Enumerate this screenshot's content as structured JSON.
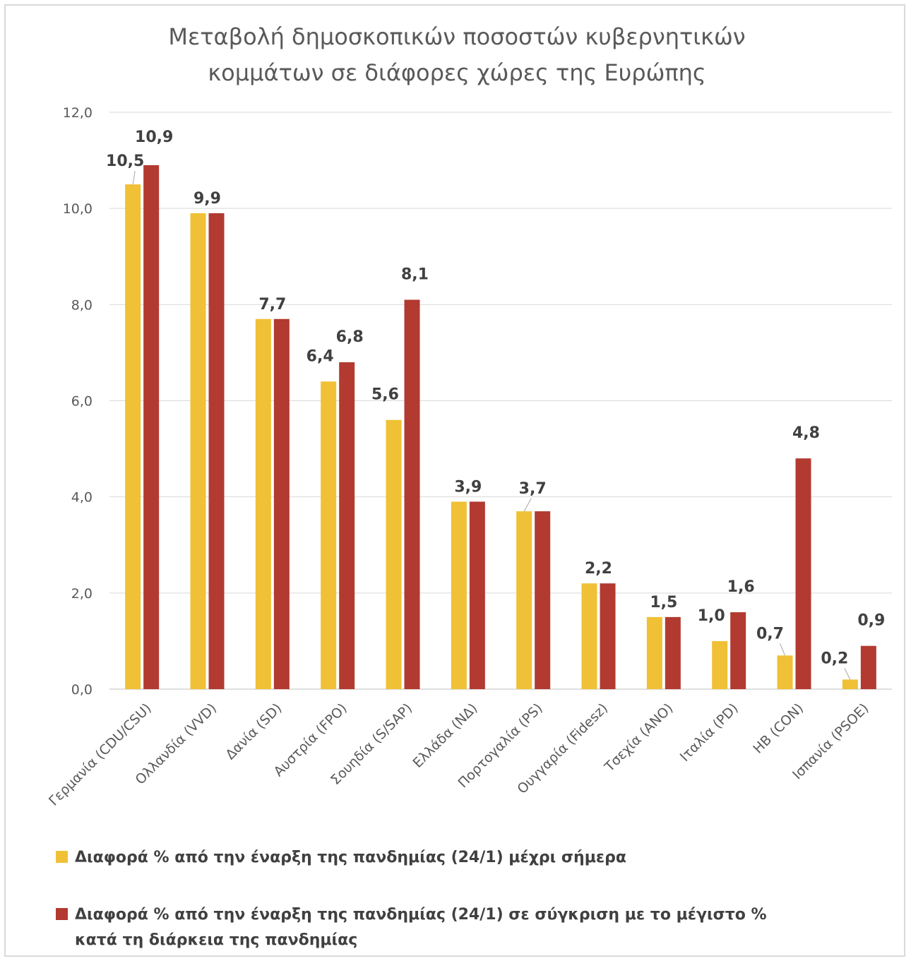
{
  "chart_data": {
    "type": "bar",
    "title": "Μεταβολή δημοσκοπικών ποσοστών κυβερνητικών κομμάτων σε διάφορες χώρες της Ευρώπης",
    "title_lines": [
      "Μεταβολή δημοσκοπικών ποσοστών κυβερνητικών",
      "κομμάτων σε διάφορες χώρες της Ευρώπης"
    ],
    "categories": [
      "Γερμανία (CDU/CSU)",
      "Ολλανδία (VVD)",
      "Δανία (SD)",
      "Αυστρία (FPO)",
      "Σουηδία (S/SAP)",
      "Ελλάδα (ΝΔ)",
      "Πορτογαλία (PS)",
      "Ουγγαρία (Fidesz)",
      "Τσεχία (ANO)",
      "Ιταλία (PD)",
      "ΗΒ (CON)",
      "Ισπανία (PSOE)"
    ],
    "series": [
      {
        "name": "Διαφορά % από την έναρξη της πανδημίας (24/1) μέχρι σήμερα",
        "legend_lines": [
          "Διαφορά % από την έναρξη της πανδημίας (24/1) μέχρι σήμερα"
        ],
        "color": "#f0c136",
        "values": [
          10.5,
          9.9,
          7.7,
          6.4,
          5.6,
          3.9,
          3.7,
          2.2,
          1.5,
          1.0,
          0.7,
          0.2
        ],
        "labels": [
          "10,5",
          "",
          "",
          "6,4",
          "5,6",
          "",
          "3,7",
          "",
          "",
          "1,0",
          "0,7",
          "0,2"
        ]
      },
      {
        "name": "Διαφορά % από την έναρξη της πανδημίας (24/1) σε σύγκριση με το μέγιστο % κατά τη διάρκεια της πανδημίας",
        "legend_lines": [
          "Διαφορά % από την έναρξη της πανδημίας (24/1) σε σύγκριση με το μέγιστο %",
          "κατά τη διάρκεια της πανδημίας"
        ],
        "color": "#b23a30",
        "values": [
          10.9,
          9.9,
          7.7,
          6.8,
          8.1,
          3.9,
          3.7,
          2.2,
          1.5,
          1.6,
          4.8,
          0.9
        ],
        "labels": [
          "10,9",
          "",
          "",
          "6,8",
          "8,1",
          "",
          "",
          "",
          "",
          "1,6",
          "4,8",
          "0,9"
        ]
      }
    ],
    "shared_labels": [
      "",
      "9,9",
      "7,7",
      "",
      "",
      "3,9",
      "",
      "2,2",
      "1,5",
      "",
      "",
      ""
    ],
    "yticks": [
      "0,0",
      "2,0",
      "4,0",
      "6,0",
      "8,0",
      "10,0",
      "12,0"
    ],
    "ylim": [
      0,
      12
    ],
    "xlabel": "",
    "ylabel": "",
    "grid": true,
    "legend_position": "bottom"
  }
}
